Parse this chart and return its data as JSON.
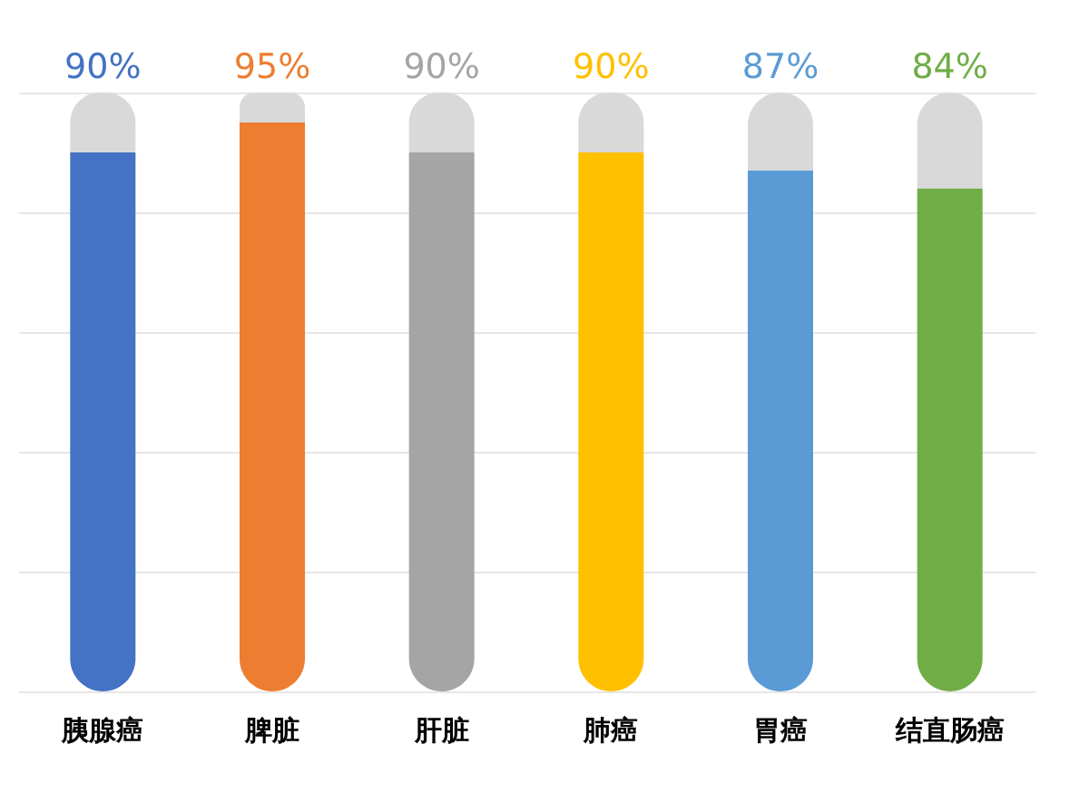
{
  "chart_data": {
    "type": "bar",
    "stacked": true,
    "categories": [
      "胰腺癌",
      "脾脏",
      "肝脏",
      "肺癌",
      "胃癌",
      "结直肠癌"
    ],
    "series": [
      {
        "colors": [
          "#4472c4",
          "#ed7d31",
          "#a5a5a5",
          "#ffc000",
          "#5b9bd5",
          "#70ad47"
        ],
        "values": [
          90,
          95,
          90,
          90,
          87,
          84
        ],
        "value_labels": [
          "90%",
          "95%",
          "90%",
          "90%",
          "87%",
          "84%"
        ]
      },
      {
        "color": "#d9d9d9",
        "values": [
          10,
          5,
          10,
          10,
          13,
          16
        ]
      }
    ],
    "ylim": [
      0,
      100
    ],
    "yticks": [
      {
        "value": 0,
        "label": null
      },
      {
        "value": 20,
        "label": null
      },
      {
        "value": 40,
        "label": null
      },
      {
        "value": 60,
        "label": null
      },
      {
        "value": 80,
        "label": null
      },
      {
        "value": 100,
        "label": null
      }
    ],
    "grid": "y",
    "tick_labels": "x"
  }
}
